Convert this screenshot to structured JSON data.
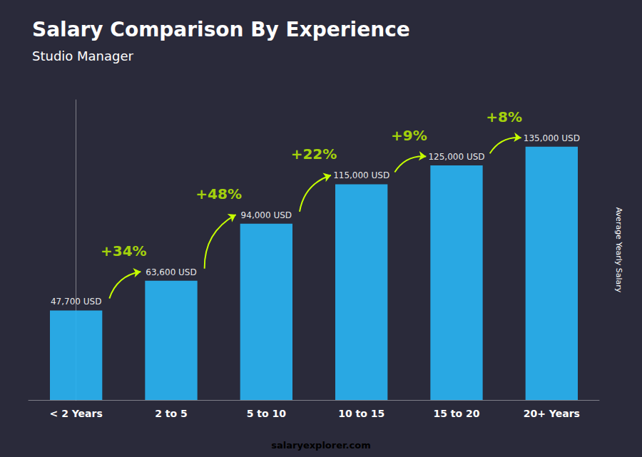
{
  "chart_data": {
    "type": "bar",
    "title": "Salary Comparison By Experience",
    "subtitle": "Studio Manager",
    "ylabel": "Average Yearly Salary",
    "categories": [
      "< 2 Years",
      "2 to 5",
      "5 to 10",
      "10 to 15",
      "15 to 20",
      "20+ Years"
    ],
    "values": [
      47700,
      63600,
      94000,
      115000,
      125000,
      135000
    ],
    "value_labels": [
      "47,700 USD",
      "63,600 USD",
      "94,000 USD",
      "115,000 USD",
      "125,000 USD",
      "135,000 USD"
    ],
    "data_labels": true,
    "annotations": [
      "+34%",
      "+48%",
      "+22%",
      "+9%",
      "+8%"
    ],
    "annotation_color": "#c6ff00",
    "watermark": [
      "salary",
      "explorer.com"
    ],
    "watermark_colors": [
      "#ffffff",
      "#29b6f6"
    ],
    "color": "#29b6f6",
    "label_color": "#ffffff",
    "background": "#2a2a3a",
    "ylim": [
      0,
      160000
    ],
    "tick_labels": "x",
    "grid": false
  }
}
